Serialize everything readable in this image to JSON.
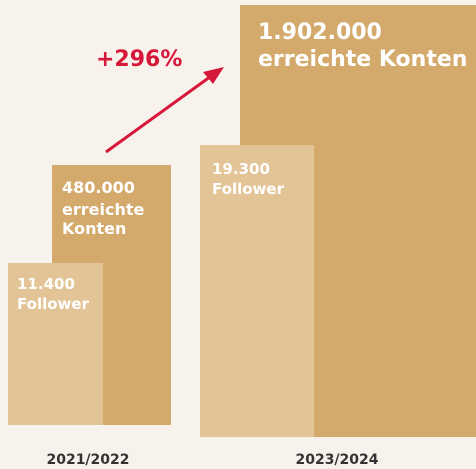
{
  "growth": "+296%",
  "periods": [
    {
      "label": "2021/2022",
      "follower": {
        "value": "11.400",
        "name": "Follower"
      },
      "reach": {
        "value": "480.000",
        "name": "erreichte Konten"
      }
    },
    {
      "label": "2023/2024",
      "follower": {
        "value": "19.300",
        "name": "Follower"
      },
      "reach": {
        "value": "1.902.000",
        "name": "erreichte Konten"
      }
    }
  ]
}
